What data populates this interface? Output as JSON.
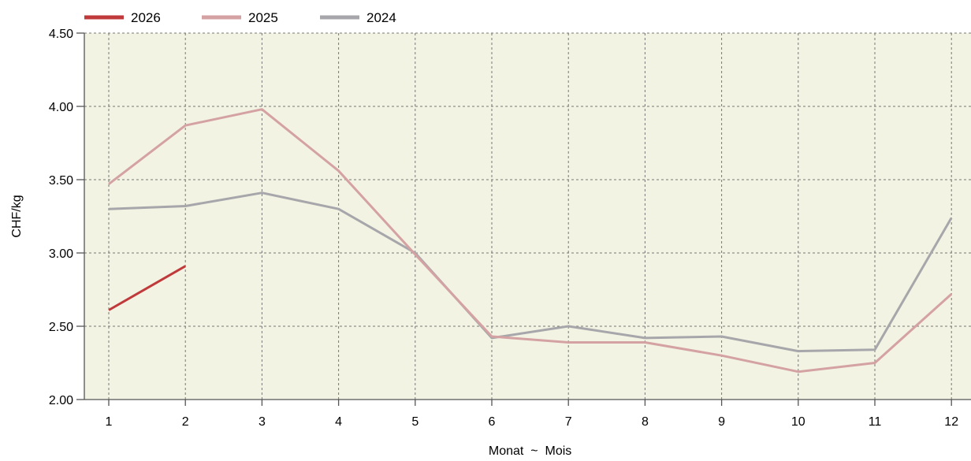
{
  "chart_data": {
    "type": "line",
    "xlabel": "Monat  ~  Mois",
    "ylabel": "CHF/kg",
    "categories": [
      "1",
      "2",
      "3",
      "4",
      "5",
      "6",
      "7",
      "8",
      "9",
      "10",
      "11",
      "12"
    ],
    "ylim": [
      2.0,
      4.5
    ],
    "yticks": [
      "2.00",
      "2.50",
      "3.00",
      "3.50",
      "4.00",
      "4.50"
    ],
    "grid": true,
    "legend_position": "top-left",
    "plot_background": "#f3f3e3",
    "series": [
      {
        "name": "2026",
        "color": "#c0393b",
        "values": [
          2.61,
          2.91,
          null,
          null,
          null,
          null,
          null,
          null,
          null,
          null,
          null,
          null
        ]
      },
      {
        "name": "2025",
        "color": "#d4a2a2",
        "values": [
          3.47,
          3.87,
          3.98,
          3.56,
          2.99,
          2.43,
          2.39,
          2.39,
          2.3,
          2.19,
          2.25,
          2.72
        ]
      },
      {
        "name": "2024",
        "color": "#a7a7ab",
        "values": [
          3.3,
          3.32,
          3.41,
          3.3,
          3.0,
          2.42,
          2.5,
          2.42,
          2.43,
          2.33,
          2.34,
          3.24
        ]
      }
    ]
  }
}
